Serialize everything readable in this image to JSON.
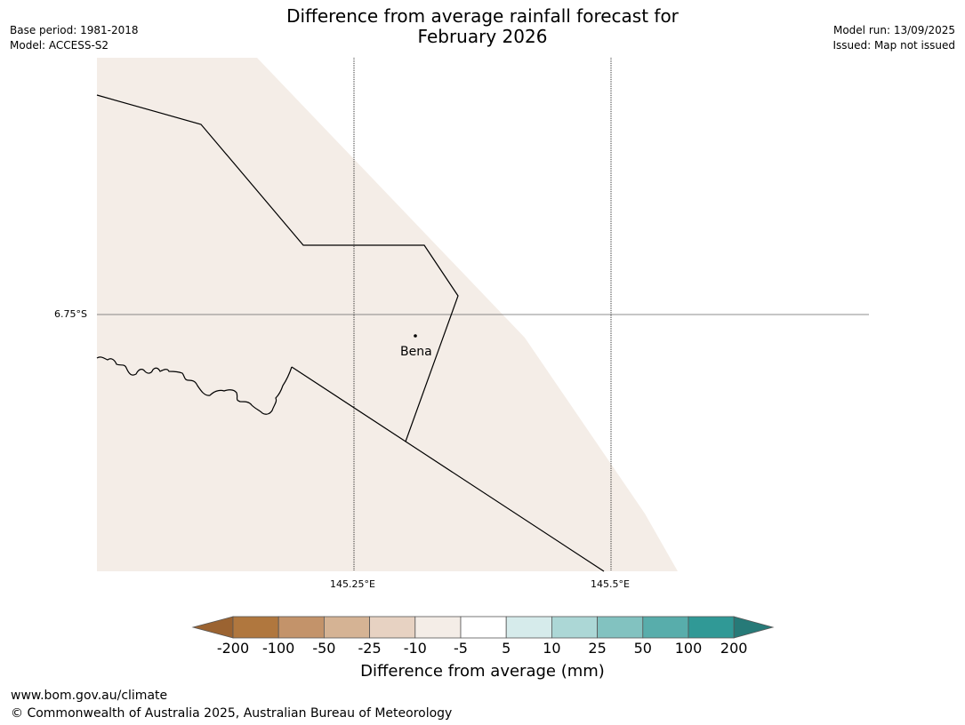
{
  "header": {
    "title_line1": "Difference from average rainfall forecast for",
    "title_line2": "February 2026",
    "base_period": "Base period: 1981-2018",
    "model": "Model: ACCESS-S2",
    "model_run": "Model run: 13/09/2025",
    "issued": "Issued: Map not issued"
  },
  "map": {
    "lat_label": "6.75°S",
    "lon_labels": [
      "145.25°E",
      "145.5°E"
    ],
    "place": "Bena",
    "fill_color": "#f4ede7",
    "fill_category": "-10 to -5"
  },
  "colorbar": {
    "label": "Difference from average (mm)",
    "ticks": [
      "-200",
      "-100",
      "-50",
      "-25",
      "-10",
      "-5",
      "5",
      "10",
      "25",
      "50",
      "100",
      "200"
    ],
    "colors": [
      "#9b6331",
      "#b0773e",
      "#c3936a",
      "#d5b394",
      "#e7d2c2",
      "#f4ede7",
      "#ffffff",
      "#d6ebeb",
      "#acd7d6",
      "#82c2c0",
      "#58adab",
      "#309996",
      "#277a78"
    ]
  },
  "footer": {
    "url": "www.bom.gov.au/climate",
    "copyright": "© Commonwealth of Australia 2025, Australian Bureau of Meteorology"
  }
}
